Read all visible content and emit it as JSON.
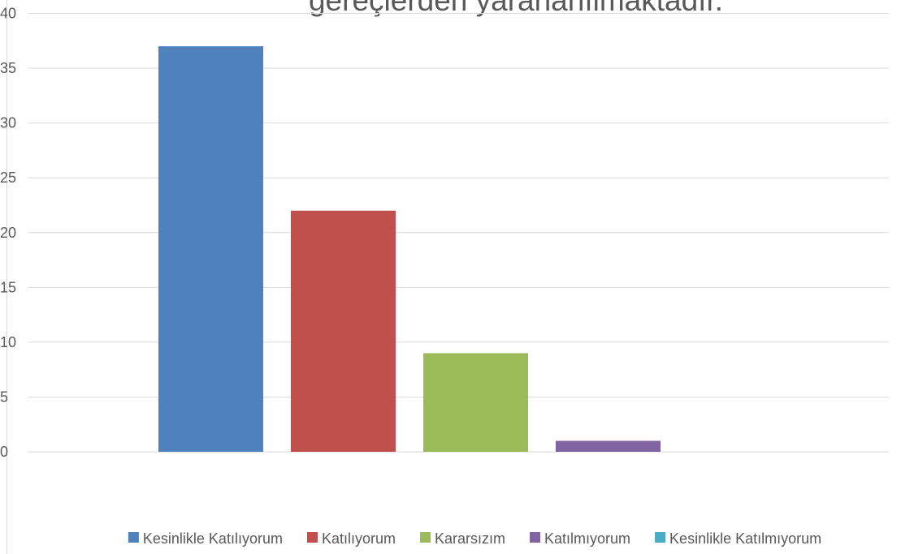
{
  "chart_data": {
    "type": "bar",
    "title": "gereçlerden yararlanılmaktadır.",
    "series": [
      {
        "name": "Kesinlikle Katılıyorum",
        "color": "#4f81bd",
        "values": [
          37
        ]
      },
      {
        "name": "Katılıyorum",
        "color": "#c0504d",
        "values": [
          22
        ]
      },
      {
        "name": "Kararsızım",
        "color": "#9bbb59",
        "values": [
          9
        ]
      },
      {
        "name": "Katılmıyorum",
        "color": "#8064a2",
        "values": [
          1
        ]
      },
      {
        "name": "Kesinlikle Katılmıyorum",
        "color": "#4bacc6",
        "values": [
          0
        ]
      }
    ],
    "ylim": [
      0,
      40
    ],
    "yticks": [
      0,
      5,
      10,
      15,
      20,
      25,
      30,
      35,
      40
    ],
    "grid": true,
    "legend": "bottom"
  }
}
